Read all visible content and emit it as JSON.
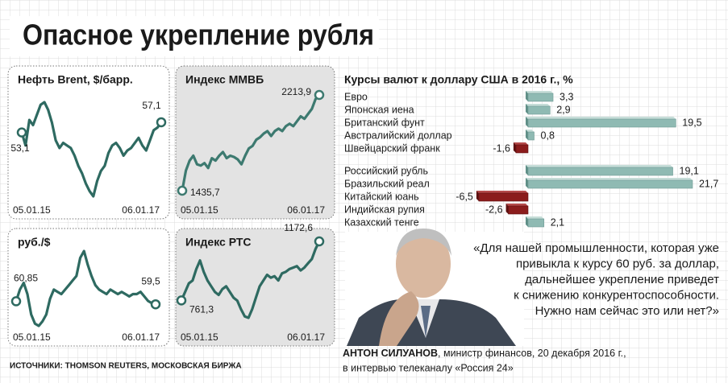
{
  "title": "Опасное укрепление рубля",
  "sources": "ИСТОЧНИКИ: THOMSON REUTERS, МОСКОВСКАЯ БИРЖА",
  "quote": {
    "lines": [
      "«Для нашей промышленности, которая уже",
      "привыкла к курсу 60 руб. за доллар,",
      "дальнейшее укрепление приведет",
      "к снижению конкурентоспособности.",
      "Нужно нам сейчас это или нет?»"
    ],
    "author": "АНТОН СИЛУАНОВ",
    "author_role": ", министр финансов, 20 декабря 2016 г.,",
    "author_line2": "в интервью телеканалу «Россия 24»"
  },
  "chart_data": [
    {
      "type": "line",
      "title": "Нефть Brent, $/барр.",
      "color": "#2e6a61",
      "categories": [
        "05.01.15",
        null,
        null,
        null,
        null,
        null,
        null,
        null,
        null,
        null,
        null,
        null,
        null,
        null,
        null,
        null,
        null,
        null,
        null,
        null,
        null,
        null,
        null,
        null,
        null,
        null,
        null,
        null,
        null,
        null,
        null,
        null,
        null,
        null,
        null,
        null,
        null,
        "06.01.17"
      ],
      "values": [
        53.1,
        48,
        58,
        56,
        60,
        64,
        65,
        62,
        57,
        50,
        47,
        49,
        48,
        47,
        44,
        40,
        37,
        33,
        30,
        28,
        34,
        38,
        40,
        45,
        48,
        49,
        47,
        44,
        46,
        47,
        49,
        51,
        48,
        46,
        50,
        54,
        55,
        57.1
      ],
      "value_labels": [
        "53,1",
        null,
        null,
        null,
        null,
        null,
        null,
        null,
        null,
        null,
        null,
        null,
        null,
        null,
        null,
        null,
        null,
        null,
        null,
        null,
        null,
        null,
        null,
        null,
        null,
        null,
        null,
        null,
        null,
        null,
        null,
        null,
        null,
        null,
        null,
        null,
        null,
        "57,1"
      ]
    },
    {
      "type": "line",
      "title": "Индекс ММВБ",
      "color": "#3d7a70",
      "categories": [
        "05.01.15",
        null,
        null,
        null,
        null,
        null,
        null,
        null,
        null,
        null,
        null,
        null,
        null,
        null,
        null,
        null,
        null,
        null,
        null,
        null,
        null,
        null,
        null,
        null,
        null,
        null,
        null,
        null,
        null,
        null,
        null,
        null,
        null,
        null,
        null,
        null,
        null,
        "06.01.17"
      ],
      "values": [
        1435.7,
        1600,
        1680,
        1720,
        1650,
        1640,
        1660,
        1620,
        1700,
        1680,
        1720,
        1750,
        1700,
        1720,
        1710,
        1690,
        1650,
        1720,
        1780,
        1800,
        1850,
        1870,
        1900,
        1920,
        1880,
        1920,
        1940,
        1920,
        1960,
        1980,
        1960,
        2000,
        2040,
        2020,
        2060,
        2100,
        2180,
        2213.9
      ],
      "value_labels": [
        "1435,7",
        null,
        null,
        null,
        null,
        null,
        null,
        null,
        null,
        null,
        null,
        null,
        null,
        null,
        null,
        null,
        null,
        null,
        null,
        null,
        null,
        null,
        null,
        null,
        null,
        null,
        null,
        null,
        null,
        null,
        null,
        null,
        null,
        null,
        null,
        null,
        null,
        "2213,9"
      ]
    },
    {
      "type": "line",
      "title": "руб./$",
      "color": "#2e6a61",
      "categories": [
        "05.01.15",
        null,
        null,
        null,
        null,
        null,
        null,
        null,
        null,
        null,
        null,
        null,
        null,
        null,
        null,
        null,
        null,
        null,
        null,
        null,
        null,
        null,
        null,
        null,
        null,
        null,
        null,
        null,
        null,
        null,
        null,
        null,
        null,
        null,
        null,
        null,
        null,
        "06.01.17"
      ],
      "values": [
        60.85,
        66,
        69,
        64,
        55,
        51,
        50,
        52,
        55,
        62,
        66,
        65,
        64,
        66,
        68,
        70,
        72,
        80,
        83,
        77,
        72,
        68,
        66,
        65,
        64,
        66,
        65,
        64,
        65,
        64,
        63,
        64,
        64,
        65,
        63,
        61,
        60,
        59.5
      ],
      "value_labels": [
        "60,85",
        null,
        null,
        null,
        null,
        null,
        null,
        null,
        null,
        null,
        null,
        null,
        null,
        null,
        null,
        null,
        null,
        null,
        null,
        null,
        null,
        null,
        null,
        null,
        null,
        null,
        null,
        null,
        null,
        null,
        null,
        null,
        null,
        null,
        null,
        null,
        null,
        "59,5"
      ]
    },
    {
      "type": "line",
      "title": "Индекс РТС",
      "color": "#2e6a61",
      "categories": [
        "05.01.15",
        null,
        null,
        null,
        null,
        null,
        null,
        null,
        null,
        null,
        null,
        null,
        null,
        null,
        null,
        null,
        null,
        null,
        null,
        null,
        null,
        null,
        null,
        null,
        null,
        null,
        null,
        null,
        null,
        null,
        null,
        null,
        null,
        null,
        null,
        null,
        null,
        "06.01.17"
      ],
      "values": [
        761.3,
        820,
        880,
        900,
        980,
        1040,
        960,
        900,
        860,
        820,
        800,
        840,
        860,
        820,
        780,
        760,
        700,
        650,
        640,
        700,
        780,
        860,
        900,
        940,
        920,
        930,
        900,
        950,
        960,
        980,
        990,
        1000,
        970,
        990,
        1020,
        1050,
        1120,
        1172.6
      ],
      "value_labels": [
        "761,3",
        null,
        null,
        null,
        null,
        null,
        null,
        null,
        null,
        null,
        null,
        null,
        null,
        null,
        null,
        null,
        null,
        null,
        null,
        null,
        null,
        null,
        null,
        null,
        null,
        null,
        null,
        null,
        null,
        null,
        null,
        null,
        null,
        null,
        null,
        null,
        null,
        "1172,6"
      ]
    },
    {
      "type": "bar",
      "orientation": "horizontal",
      "title": "Курсы валют к доллару США в 2016 г., %",
      "color": "#8fbab3",
      "negative_color": "#8b1c1c",
      "categories": [
        "Евро",
        "Японская иена",
        "Британский фунт",
        "Австралийский доллар",
        "Швейцарский франк",
        "Российский рубль",
        "Бразильский реал",
        "Китайский юань",
        "Индийская рупия",
        "Казахский тенге"
      ],
      "values": [
        3.3,
        2.9,
        19.5,
        0.8,
        -1.6,
        19.1,
        21.7,
        -6.5,
        -2.6,
        2.1
      ],
      "value_labels": [
        "3,3",
        "2,9",
        "19,5",
        "0,8",
        "-1,6",
        "19,1",
        "21,7",
        "-6,5",
        "-2,6",
        "2,1"
      ]
    }
  ]
}
